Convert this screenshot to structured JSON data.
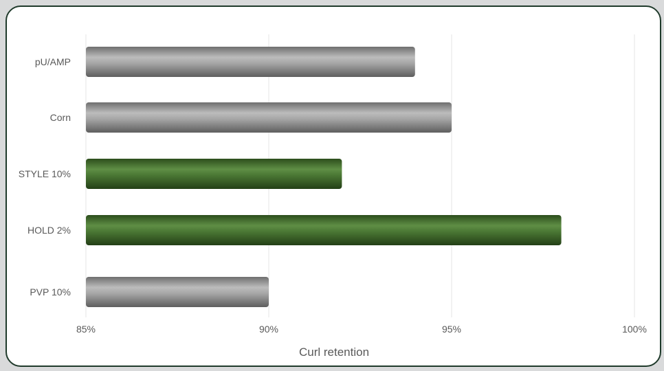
{
  "chart_data": {
    "type": "bar",
    "orientation": "horizontal",
    "categories": [
      "pU/AMP",
      "Corn",
      "STYLE 10%",
      "HOLD 2%",
      "PVP 10%"
    ],
    "values": [
      94.0,
      95.0,
      92.0,
      98.0,
      90.0
    ],
    "unit": "%",
    "bar_colors": [
      "#8c8c8c",
      "#8c8c8c",
      "#3e6b2a",
      "#3e6b2a",
      "#8c8c8c"
    ],
    "xlabel": "Curl retention",
    "ylabel": "",
    "xlim": [
      85,
      100
    ],
    "xticks": [
      85,
      90,
      95,
      100
    ],
    "xtick_labels": [
      "85%",
      "90%",
      "95%",
      "100%"
    ],
    "grid": "vertical",
    "legend": "none"
  },
  "colors": {
    "frame_border": "#1f3a2b",
    "page_background": "#d9dadb",
    "gray_bar": "#8c8c8c",
    "green_bar": "#3e6b2a",
    "gridline": "#e6e6e6",
    "label_text": "#595959"
  }
}
